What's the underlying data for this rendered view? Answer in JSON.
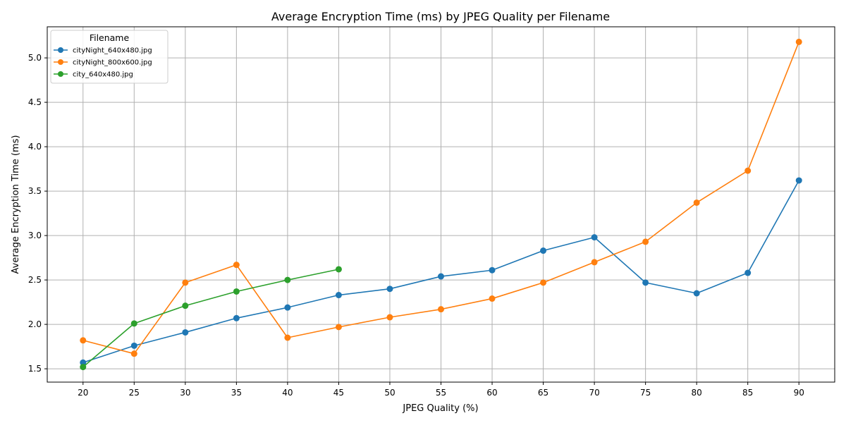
{
  "chart_data": {
    "type": "line",
    "title": "Average Encryption Time (ms) by JPEG Quality per Filename",
    "xlabel": "JPEG Quality (%)",
    "ylabel": "Average Encryption Time (ms)",
    "xlim": [
      16.5,
      93.5
    ],
    "ylim": [
      1.35,
      5.35
    ],
    "xticks": [
      20,
      25,
      30,
      35,
      40,
      45,
      50,
      55,
      60,
      65,
      70,
      75,
      80,
      85,
      90
    ],
    "yticks": [
      1.5,
      2.0,
      2.5,
      3.0,
      3.5,
      4.0,
      4.5,
      5.0
    ],
    "ytick_labels": [
      "1.5",
      "2.0",
      "2.5",
      "3.0",
      "3.5",
      "4.0",
      "4.5",
      "5.0"
    ],
    "grid": true,
    "legend_title": "Filename",
    "legend_position": "top-left",
    "series": [
      {
        "name": "cityNight_640x480.jpg",
        "color": "#1f77b4",
        "x": [
          20,
          25,
          30,
          35,
          40,
          45,
          50,
          55,
          60,
          65,
          70,
          75,
          80,
          85,
          90
        ],
        "y": [
          1.57,
          1.76,
          1.91,
          2.07,
          2.19,
          2.33,
          2.4,
          2.54,
          2.61,
          2.83,
          2.98,
          2.47,
          2.35,
          2.58,
          3.62
        ]
      },
      {
        "name": "cityNight_800x600.jpg",
        "color": "#ff7f0e",
        "x": [
          20,
          25,
          30,
          35,
          40,
          45,
          50,
          55,
          60,
          65,
          70,
          75,
          80,
          85,
          90
        ],
        "y": [
          1.82,
          1.67,
          2.47,
          2.67,
          1.85,
          1.97,
          2.08,
          2.17,
          2.29,
          2.47,
          2.7,
          2.93,
          3.37,
          3.73,
          5.18
        ]
      },
      {
        "name": "city_640x480.jpg",
        "color": "#2ca02c",
        "x": [
          20,
          25,
          30,
          35,
          40,
          45
        ],
        "y": [
          1.52,
          2.01,
          2.21,
          2.37,
          2.5,
          2.62
        ]
      }
    ]
  }
}
